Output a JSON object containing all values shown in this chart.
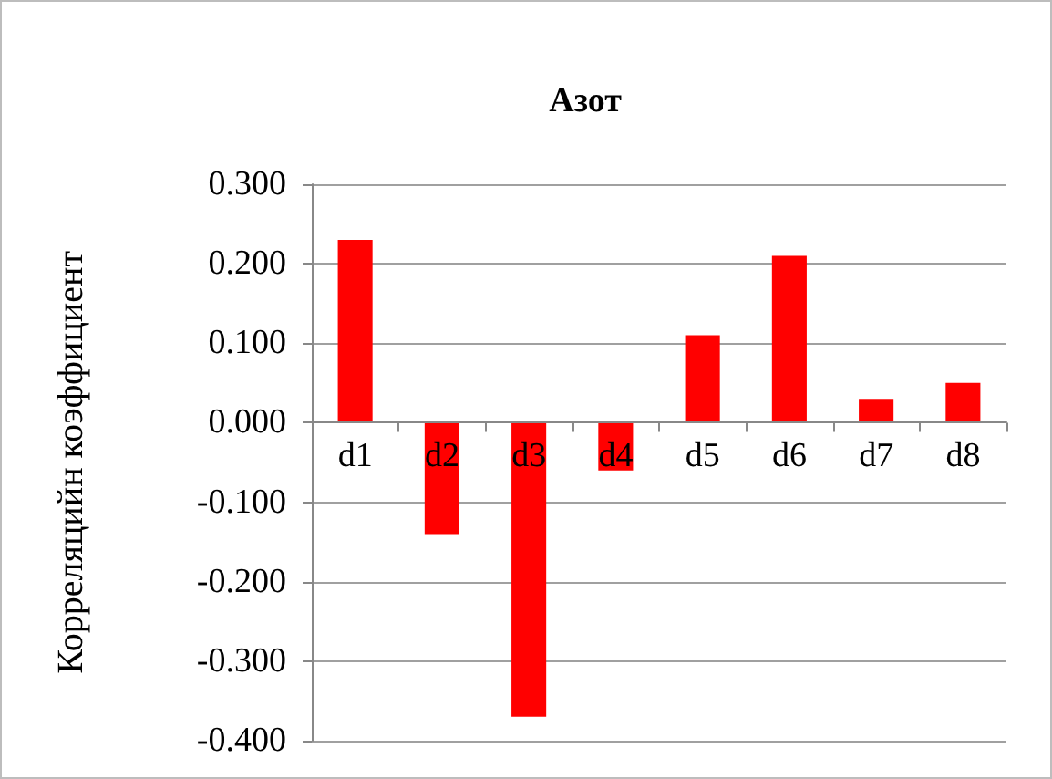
{
  "chart_data": {
    "type": "bar",
    "title": "Азот",
    "ylabel": "Корреляцийн коэффициент",
    "categories": [
      "d1",
      "d2",
      "d3",
      "d4",
      "d5",
      "d6",
      "d7",
      "d8"
    ],
    "values": [
      0.23,
      -0.14,
      -0.37,
      -0.06,
      0.11,
      0.21,
      0.03,
      0.05
    ],
    "color": "#ff0000",
    "ylim": [
      -0.4,
      0.3
    ],
    "yticks": [
      {
        "value": -0.4,
        "label": "-0.400"
      },
      {
        "value": -0.3,
        "label": "-0.300"
      },
      {
        "value": -0.2,
        "label": "-0.200"
      },
      {
        "value": -0.1,
        "label": "-0.100"
      },
      {
        "value": 0,
        "label": "0.000"
      },
      {
        "value": 0.1,
        "label": "0.100"
      },
      {
        "value": 0.2,
        "label": "0.200"
      },
      {
        "value": 0.3,
        "label": "0.300"
      }
    ],
    "grid": "y"
  }
}
